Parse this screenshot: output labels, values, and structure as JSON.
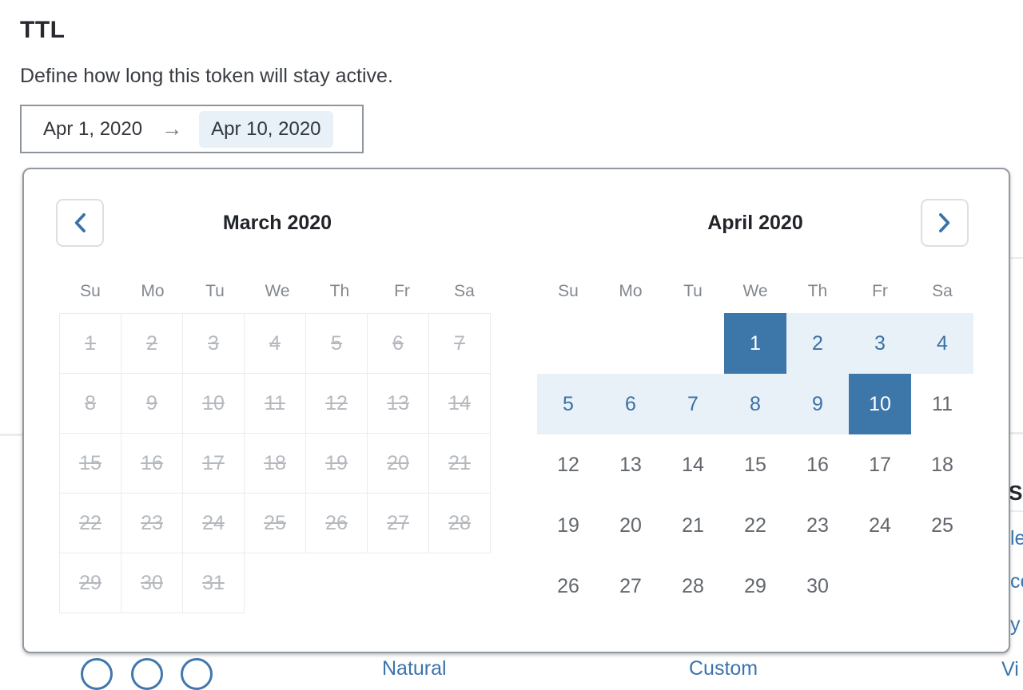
{
  "header": {
    "title": "TTL",
    "description": "Define how long this token will stay active."
  },
  "date_range_input": {
    "start": "Apr 1, 2020",
    "arrow": "→",
    "end": "Apr 10, 2020"
  },
  "calendar": {
    "weekdays": [
      "Su",
      "Mo",
      "Tu",
      "We",
      "Th",
      "Fr",
      "Sa"
    ],
    "prev_button_icon": "chevron-left",
    "next_button_icon": "chevron-right",
    "months": [
      {
        "key": "march",
        "title": "March 2020",
        "disabled": true,
        "bordered": true,
        "weeks": [
          [
            1,
            2,
            3,
            4,
            5,
            6,
            7
          ],
          [
            8,
            9,
            10,
            11,
            12,
            13,
            14
          ],
          [
            15,
            16,
            17,
            18,
            19,
            20,
            21
          ],
          [
            22,
            23,
            24,
            25,
            26,
            27,
            28
          ],
          [
            29,
            30,
            31,
            null,
            null,
            null,
            null
          ]
        ]
      },
      {
        "key": "april",
        "title": "April 2020",
        "disabled": false,
        "bordered": false,
        "range_start": 1,
        "range_end": 10,
        "weeks": [
          [
            null,
            null,
            null,
            1,
            2,
            3,
            4
          ],
          [
            5,
            6,
            7,
            8,
            9,
            10,
            11
          ],
          [
            12,
            13,
            14,
            15,
            16,
            17,
            18
          ],
          [
            19,
            20,
            21,
            22,
            23,
            24,
            25
          ],
          [
            26,
            27,
            28,
            29,
            30,
            null,
            null
          ]
        ]
      }
    ]
  },
  "clipped_fragments": {
    "right_heading": "Su",
    "right_links": [
      "le",
      "co",
      "y"
    ],
    "right_below_popup": "Vi",
    "bottom_links": [
      "Natural",
      "Custom",
      "View"
    ]
  },
  "colors": {
    "accent_blue": "#3d76a8",
    "range_fill": "#e8f0f8",
    "link_blue": "#3a74ad",
    "disabled_gray": "#b5b9be"
  }
}
